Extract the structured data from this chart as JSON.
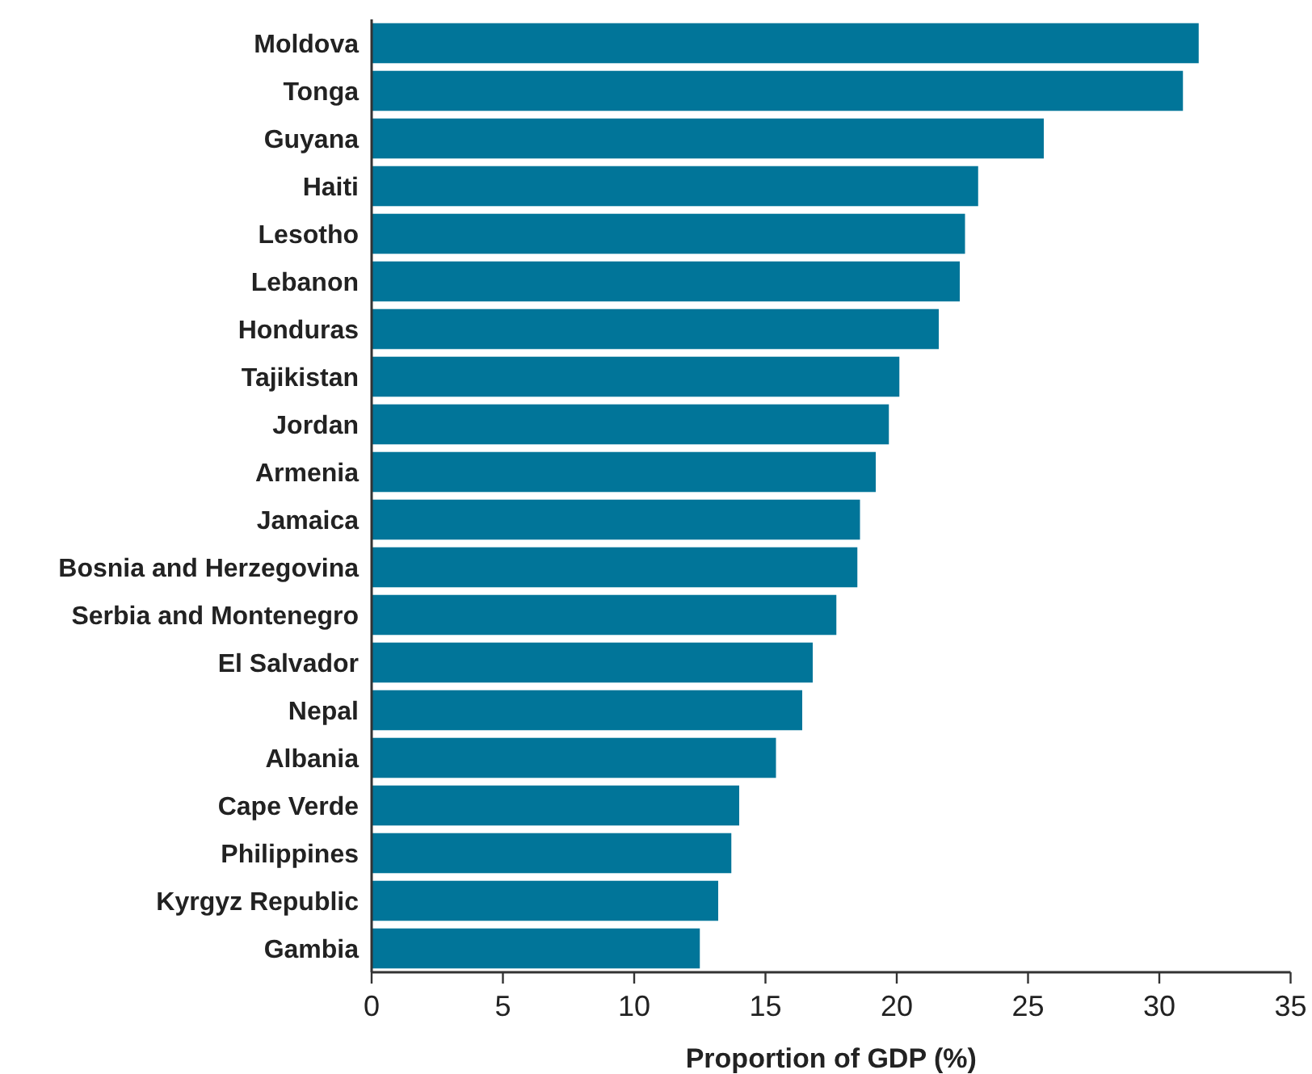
{
  "chart_data": {
    "type": "bar",
    "orientation": "horizontal",
    "xlabel": "Proportion of GDP (%)",
    "categories": [
      "Moldova",
      "Tonga",
      "Guyana",
      "Haiti",
      "Lesotho",
      "Lebanon",
      "Honduras",
      "Tajikistan",
      "Jordan",
      "Armenia",
      "Jamaica",
      "Bosnia and Herzegovina",
      "Serbia and Montenegro",
      "El Salvador",
      "Nepal ",
      "Albania",
      "Cape Verde",
      "Philippines",
      "Kyrgyz Republic",
      "Gambia"
    ],
    "values": [
      31.5,
      30.9,
      25.6,
      23.1,
      22.6,
      22.4,
      21.6,
      20.1,
      19.7,
      19.2,
      18.6,
      18.5,
      17.7,
      16.8,
      16.4,
      15.4,
      14.0,
      13.7,
      13.2,
      12.5
    ],
    "color": "#017599",
    "xlim": [
      0,
      35
    ],
    "xticks": [
      0,
      5,
      10,
      15,
      20,
      25,
      30,
      35
    ],
    "grid": false
  }
}
